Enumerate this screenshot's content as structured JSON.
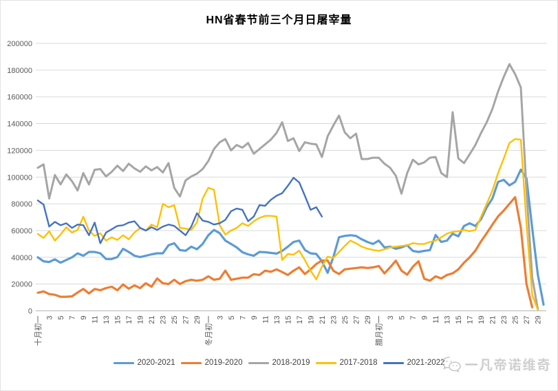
{
  "watermark": {
    "text": "一凡帝诺维奇",
    "icon": "wechat-icon",
    "color": "#c9c9c9"
  },
  "chart_data": {
    "type": "line",
    "title": "HN省春节前三个月日屠宰量",
    "xlabel": "",
    "ylabel": "",
    "ylim": [
      0,
      200000
    ],
    "y_ticks": [
      0,
      20000,
      40000,
      60000,
      80000,
      100000,
      120000,
      140000,
      160000,
      180000,
      200000
    ],
    "grid": "horizontal",
    "legend_position": "bottom",
    "axis_color": "#bfbfbf",
    "gridline_color": "#d9d9d9",
    "tick_label_color": "#595959",
    "x_tick_labels": [
      "十月初一",
      "3",
      "5",
      "7",
      "9",
      "11",
      "13",
      "15",
      "17",
      "19",
      "21",
      "23",
      "25",
      "27",
      "29",
      "冬月初一",
      "3",
      "5",
      "7",
      "9",
      "11",
      "13",
      "15",
      "17",
      "19",
      "21",
      "23",
      "25",
      "27",
      "29",
      "腊月初一",
      "3",
      "5",
      "7",
      "9",
      "11",
      "13",
      "15",
      "17",
      "19",
      "21",
      "23",
      "25",
      "27",
      "29"
    ],
    "x_tick_day_step": 2,
    "total_days": 90,
    "series": [
      {
        "name": "2020-2021",
        "color": "#5B9BD5",
        "width": 3.2,
        "values": [
          40000,
          37000,
          36500,
          38500,
          36000,
          38000,
          40000,
          43000,
          41200,
          44000,
          44000,
          43000,
          38700,
          38700,
          40200,
          46400,
          44000,
          41200,
          40200,
          41200,
          42200,
          43000,
          43000,
          49000,
          50500,
          45400,
          44900,
          48000,
          46000,
          50000,
          56500,
          60500,
          58000,
          52500,
          50000,
          47400,
          43800,
          42200,
          41200,
          44000,
          43800,
          43300,
          42800,
          44800,
          48000,
          51500,
          52500,
          45500,
          43000,
          42500,
          37000,
          28400,
          40000,
          55000,
          56000,
          56500,
          56000,
          53500,
          51500,
          50000,
          52500,
          47400,
          48000,
          46400,
          47400,
          49000,
          44800,
          44000,
          44800,
          45400,
          56700,
          51500,
          52500,
          57700,
          55700,
          63400,
          65500,
          63400,
          68500,
          77300,
          84000,
          96400,
          97900,
          93800,
          96400,
          105600,
          99000,
          62000,
          27000,
          4600
        ]
      },
      {
        "name": "2019-2020",
        "color": "#ED7D31",
        "width": 3.2,
        "values": [
          13500,
          14500,
          12500,
          12000,
          10500,
          10500,
          10800,
          13700,
          16300,
          13000,
          16300,
          15400,
          17000,
          18000,
          15400,
          19700,
          16500,
          19000,
          17000,
          20600,
          18000,
          24200,
          20600,
          20000,
          23200,
          20000,
          22200,
          23200,
          22500,
          23200,
          25800,
          23200,
          24000,
          30000,
          23200,
          24000,
          24800,
          24800,
          27400,
          26800,
          30000,
          29200,
          31000,
          29000,
          26800,
          30000,
          32500,
          27500,
          31000,
          35000,
          37600,
          37600,
          30000,
          27500,
          31000,
          31500,
          32000,
          32500,
          32000,
          32500,
          33500,
          28000,
          32500,
          37500,
          30000,
          27000,
          33000,
          37000,
          24000,
          22500,
          25800,
          24200,
          26800,
          28000,
          31000,
          36000,
          40000,
          45000,
          52000,
          58000,
          64500,
          70600,
          75000,
          80000,
          85000,
          62000,
          20000,
          2600
        ]
      },
      {
        "name": "2018-2019",
        "color": "#A5A5A5",
        "width": 3,
        "values": [
          107000,
          109500,
          84000,
          101500,
          94500,
          102000,
          97000,
          90000,
          103000,
          94500,
          105500,
          106000,
          100500,
          104000,
          108500,
          104500,
          110000,
          106500,
          104000,
          108000,
          105000,
          107500,
          103500,
          110500,
          92000,
          85500,
          97500,
          100500,
          102500,
          106000,
          112000,
          121000,
          126000,
          128500,
          120000,
          124000,
          122000,
          125500,
          117500,
          121000,
          124500,
          128000,
          133000,
          141000,
          127000,
          129000,
          119500,
          126000,
          125000,
          124500,
          115000,
          130500,
          138500,
          146000,
          133500,
          129000,
          132500,
          113500,
          113500,
          114500,
          114500,
          110000,
          107000,
          101000,
          87600,
          103000,
          113000,
          109500,
          111000,
          114500,
          115000,
          103000,
          100000,
          148500,
          114000,
          110500,
          117000,
          124000,
          133000,
          141000,
          151000,
          164000,
          175000,
          184500,
          177000,
          167000,
          90000,
          25000,
          1200
        ]
      },
      {
        "name": "2017-2018",
        "color": "#FFC000",
        "width": 2.4,
        "values": [
          57500,
          54500,
          59500,
          52500,
          57000,
          62500,
          58500,
          60500,
          70500,
          60000,
          56000,
          58000,
          52500,
          55000,
          53000,
          56500,
          53500,
          58500,
          62000,
          60000,
          64500,
          62500,
          80000,
          77500,
          79000,
          62000,
          61500,
          60500,
          66000,
          84000,
          92000,
          90500,
          64000,
          57000,
          60000,
          62000,
          65500,
          63500,
          67000,
          69500,
          71000,
          71000,
          70500,
          38000,
          42500,
          42000,
          45000,
          38000,
          30000,
          23500,
          33000,
          40500,
          39500,
          44000,
          48500,
          52500,
          50500,
          48000,
          46500,
          45500,
          44800,
          46000,
          47400,
          48000,
          48500,
          49000,
          50600,
          50000,
          50000,
          51500,
          52500,
          55000,
          57700,
          59000,
          59500,
          60500,
          59500,
          60500,
          70500,
          80000,
          90000,
          103000,
          114000,
          125500,
          128500,
          128000,
          65000,
          12000,
          800
        ]
      },
      {
        "name": "2021-2022",
        "color": "#4472C4",
        "width": 2.4,
        "values": [
          82500,
          79500,
          63000,
          66500,
          64000,
          65500,
          62000,
          64500,
          64000,
          56500,
          66000,
          50500,
          58500,
          61000,
          63500,
          64000,
          66000,
          67000,
          62000,
          60000,
          62500,
          60500,
          63000,
          64500,
          63500,
          60000,
          56500,
          63000,
          73000,
          67500,
          66500,
          64500,
          65500,
          68000,
          74500,
          76500,
          75500,
          67000,
          70500,
          79000,
          78500,
          83000,
          86000,
          88000,
          93500,
          99500,
          96000,
          86000,
          75500,
          77500,
          70500
        ]
      }
    ]
  }
}
